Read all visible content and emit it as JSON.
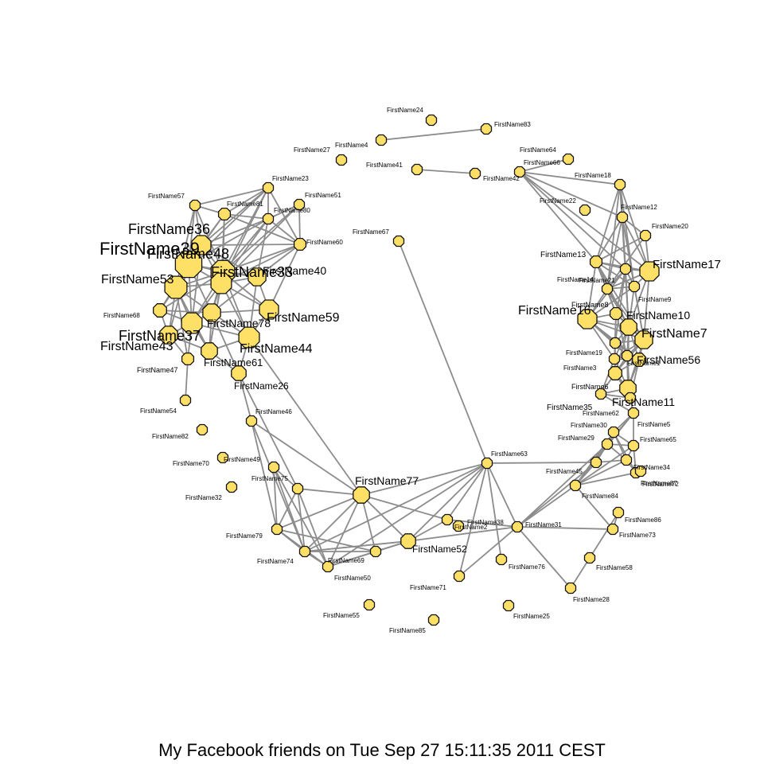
{
  "caption": "My Facebook friends on Tue Sep 27 15:11:35 2011 CEST",
  "colors": {
    "node_fill": "#ffe066",
    "node_stroke": "#111111",
    "edge": "#8c8c8c"
  },
  "nodes": [
    {
      "id": "FirstName24"
    },
    {
      "id": "FirstName83"
    },
    {
      "id": "FirstName27"
    },
    {
      "id": "FirstName4"
    },
    {
      "id": "FirstName41"
    },
    {
      "id": "FirstName42"
    },
    {
      "id": "FirstName64"
    },
    {
      "id": "FirstName66"
    },
    {
      "id": "FirstName23"
    },
    {
      "id": "FirstName57"
    },
    {
      "id": "FirstName81"
    },
    {
      "id": "FirstName51"
    },
    {
      "id": "FirstName80"
    },
    {
      "id": "FirstName60"
    },
    {
      "id": "FirstName67"
    },
    {
      "id": "FirstName36"
    },
    {
      "id": "FirstName39"
    },
    {
      "id": "FirstName48"
    },
    {
      "id": "FirstName33"
    },
    {
      "id": "FirstName40"
    },
    {
      "id": "FirstName53"
    },
    {
      "id": "FirstName68"
    },
    {
      "id": "FirstName78"
    },
    {
      "id": "FirstName59"
    },
    {
      "id": "FirstName37"
    },
    {
      "id": "FirstName43"
    },
    {
      "id": "FirstName44"
    },
    {
      "id": "FirstName47"
    },
    {
      "id": "FirstName61"
    },
    {
      "id": "FirstName26"
    },
    {
      "id": "FirstName54"
    },
    {
      "id": "FirstName46"
    },
    {
      "id": "FirstName82"
    },
    {
      "id": "FirstName70"
    },
    {
      "id": "FirstName49"
    },
    {
      "id": "FirstName75"
    },
    {
      "id": "FirstName32"
    },
    {
      "id": "FirstName77"
    },
    {
      "id": "FirstName63"
    },
    {
      "id": "FirstName79"
    },
    {
      "id": "FirstName74"
    },
    {
      "id": "FirstName69"
    },
    {
      "id": "FirstName50"
    },
    {
      "id": "FirstName52"
    },
    {
      "id": "FirstName38"
    },
    {
      "id": "FirstName2"
    },
    {
      "id": "FirstName31"
    },
    {
      "id": "FirstName71"
    },
    {
      "id": "FirstName76"
    },
    {
      "id": "FirstName55"
    },
    {
      "id": "FirstName85"
    },
    {
      "id": "FirstName25"
    },
    {
      "id": "FirstName28"
    },
    {
      "id": "FirstName58"
    },
    {
      "id": "FirstName73"
    },
    {
      "id": "FirstName86"
    },
    {
      "id": "FirstName18"
    },
    {
      "id": "FirstName22"
    },
    {
      "id": "FirstName12"
    },
    {
      "id": "FirstName20"
    },
    {
      "id": "FirstName13"
    },
    {
      "id": "FirstName17"
    },
    {
      "id": "FirstName14"
    },
    {
      "id": "FirstName21"
    },
    {
      "id": "FirstName9"
    },
    {
      "id": "FirstName8"
    },
    {
      "id": "FirstName16"
    },
    {
      "id": "FirstName10"
    },
    {
      "id": "FirstName7"
    },
    {
      "id": "FirstName19"
    },
    {
      "id": "FirstName3"
    },
    {
      "id": "FirstName1"
    },
    {
      "id": "FirstName56"
    },
    {
      "id": "FirstName6"
    },
    {
      "id": "FirstName11"
    },
    {
      "id": "FirstName35"
    },
    {
      "id": "FirstName62"
    },
    {
      "id": "FirstName30"
    },
    {
      "id": "FirstName5"
    },
    {
      "id": "FirstName29"
    },
    {
      "id": "FirstName65"
    },
    {
      "id": "FirstName34"
    },
    {
      "id": "FirstName45"
    },
    {
      "id": "FirstName72"
    },
    {
      "id": "FirstName87"
    },
    {
      "id": "FirstName84"
    }
  ],
  "edges": [
    [
      "FirstName4",
      "FirstName83"
    ],
    [
      "FirstName41",
      "FirstName42"
    ],
    [
      "FirstName64",
      "FirstName66"
    ],
    [
      "FirstName57",
      "FirstName36"
    ],
    [
      "FirstName57",
      "FirstName39"
    ],
    [
      "FirstName57",
      "FirstName81"
    ],
    [
      "FirstName57",
      "FirstName48"
    ],
    [
      "FirstName57",
      "FirstName53"
    ],
    [
      "FirstName57",
      "FirstName23"
    ],
    [
      "FirstName81",
      "FirstName23"
    ],
    [
      "FirstName81",
      "FirstName36"
    ],
    [
      "FirstName81",
      "FirstName48"
    ],
    [
      "FirstName81",
      "FirstName80"
    ],
    [
      "FirstName81",
      "FirstName33"
    ],
    [
      "FirstName81",
      "FirstName60"
    ],
    [
      "FirstName81",
      "FirstName39"
    ],
    [
      "FirstName23",
      "FirstName36"
    ],
    [
      "FirstName23",
      "FirstName80"
    ],
    [
      "FirstName23",
      "FirstName48"
    ],
    [
      "FirstName23",
      "FirstName33"
    ],
    [
      "FirstName23",
      "FirstName60"
    ],
    [
      "FirstName23",
      "FirstName39"
    ],
    [
      "FirstName51",
      "FirstName80"
    ],
    [
      "FirstName51",
      "FirstName60"
    ],
    [
      "FirstName51",
      "FirstName33"
    ],
    [
      "FirstName51",
      "FirstName48"
    ],
    [
      "FirstName80",
      "FirstName36"
    ],
    [
      "FirstName80",
      "FirstName48"
    ],
    [
      "FirstName80",
      "FirstName33"
    ],
    [
      "FirstName80",
      "FirstName40"
    ],
    [
      "FirstName80",
      "FirstName60"
    ],
    [
      "FirstName80",
      "FirstName39"
    ],
    [
      "FirstName60",
      "FirstName48"
    ],
    [
      "FirstName60",
      "FirstName33"
    ],
    [
      "FirstName60",
      "FirstName40"
    ],
    [
      "FirstName60",
      "FirstName36"
    ],
    [
      "FirstName60",
      "FirstName59"
    ],
    [
      "FirstName36",
      "FirstName39"
    ],
    [
      "FirstName36",
      "FirstName48"
    ],
    [
      "FirstName36",
      "FirstName53"
    ],
    [
      "FirstName36",
      "FirstName33"
    ],
    [
      "FirstName36",
      "FirstName68"
    ],
    [
      "FirstName36",
      "FirstName37"
    ],
    [
      "FirstName36",
      "FirstName40"
    ],
    [
      "FirstName39",
      "FirstName48"
    ],
    [
      "FirstName39",
      "FirstName53"
    ],
    [
      "FirstName39",
      "FirstName33"
    ],
    [
      "FirstName39",
      "FirstName68"
    ],
    [
      "FirstName39",
      "FirstName37"
    ],
    [
      "FirstName39",
      "FirstName43"
    ],
    [
      "FirstName39",
      "FirstName78"
    ],
    [
      "FirstName39",
      "FirstName40"
    ],
    [
      "FirstName48",
      "FirstName53"
    ],
    [
      "FirstName48",
      "FirstName33"
    ],
    [
      "FirstName48",
      "FirstName40"
    ],
    [
      "FirstName48",
      "FirstName59"
    ],
    [
      "FirstName48",
      "FirstName78"
    ],
    [
      "FirstName48",
      "FirstName37"
    ],
    [
      "FirstName48",
      "FirstName44"
    ],
    [
      "FirstName48",
      "FirstName61"
    ],
    [
      "FirstName48",
      "FirstName68"
    ],
    [
      "FirstName33",
      "FirstName40"
    ],
    [
      "FirstName33",
      "FirstName59"
    ],
    [
      "FirstName33",
      "FirstName78"
    ],
    [
      "FirstName33",
      "FirstName44"
    ],
    [
      "FirstName33",
      "FirstName53"
    ],
    [
      "FirstName33",
      "FirstName37"
    ],
    [
      "FirstName33",
      "FirstName61"
    ],
    [
      "FirstName40",
      "FirstName59"
    ],
    [
      "FirstName40",
      "FirstName44"
    ],
    [
      "FirstName40",
      "FirstName78"
    ],
    [
      "FirstName53",
      "FirstName68"
    ],
    [
      "FirstName53",
      "FirstName37"
    ],
    [
      "FirstName53",
      "FirstName43"
    ],
    [
      "FirstName53",
      "FirstName78"
    ],
    [
      "FirstName53",
      "FirstName61"
    ],
    [
      "FirstName53",
      "FirstName47"
    ],
    [
      "FirstName68",
      "FirstName37"
    ],
    [
      "FirstName68",
      "FirstName43"
    ],
    [
      "FirstName68",
      "FirstName78"
    ],
    [
      "FirstName78",
      "FirstName37"
    ],
    [
      "FirstName78",
      "FirstName43"
    ],
    [
      "FirstName78",
      "FirstName44"
    ],
    [
      "FirstName78",
      "FirstName61"
    ],
    [
      "FirstName78",
      "FirstName59"
    ],
    [
      "FirstName78",
      "FirstName26"
    ],
    [
      "FirstName37",
      "FirstName43"
    ],
    [
      "FirstName37",
      "FirstName47"
    ],
    [
      "FirstName37",
      "FirstName61"
    ],
    [
      "FirstName37",
      "FirstName44"
    ],
    [
      "FirstName43",
      "FirstName47"
    ],
    [
      "FirstName43",
      "FirstName61"
    ],
    [
      "FirstName47",
      "FirstName54"
    ],
    [
      "FirstName59",
      "FirstName44"
    ],
    [
      "FirstName44",
      "FirstName61"
    ],
    [
      "FirstName44",
      "FirstName26"
    ],
    [
      "FirstName61",
      "FirstName26"
    ],
    [
      "FirstName44",
      "FirstName77"
    ],
    [
      "FirstName67",
      "FirstName63"
    ],
    [
      "FirstName26",
      "FirstName46"
    ],
    [
      "FirstName26",
      "FirstName75"
    ],
    [
      "FirstName46",
      "FirstName79"
    ],
    [
      "FirstName46",
      "FirstName74"
    ],
    [
      "FirstName46",
      "FirstName77"
    ],
    [
      "FirstName75",
      "FirstName79"
    ],
    [
      "FirstName75",
      "FirstName74"
    ],
    [
      "FirstName75",
      "FirstName50"
    ],
    [
      "FirstName75",
      "FirstName77"
    ],
    [
      "FirstName49",
      "FirstName75"
    ],
    [
      "FirstName49",
      "FirstName79"
    ],
    [
      "FirstName49",
      "FirstName74"
    ],
    [
      "FirstName49",
      "FirstName50"
    ],
    [
      "FirstName77",
      "FirstName79"
    ],
    [
      "FirstName77",
      "FirstName74"
    ],
    [
      "FirstName77",
      "FirstName50"
    ],
    [
      "FirstName77",
      "FirstName69"
    ],
    [
      "FirstName77",
      "FirstName52"
    ],
    [
      "FirstName77",
      "FirstName38"
    ],
    [
      "FirstName77",
      "FirstName63"
    ],
    [
      "FirstName79",
      "FirstName74"
    ],
    [
      "FirstName79",
      "FirstName50"
    ],
    [
      "FirstName79",
      "FirstName69"
    ],
    [
      "FirstName74",
      "FirstName50"
    ],
    [
      "FirstName74",
      "FirstName69"
    ],
    [
      "FirstName74",
      "FirstName52"
    ],
    [
      "FirstName50",
      "FirstName69"
    ],
    [
      "FirstName50",
      "FirstName52"
    ],
    [
      "FirstName69",
      "FirstName52"
    ],
    [
      "FirstName52",
      "FirstName38"
    ],
    [
      "FirstName52",
      "FirstName63"
    ],
    [
      "FirstName52",
      "FirstName31"
    ],
    [
      "FirstName52",
      "FirstName74"
    ],
    [
      "FirstName52",
      "FirstName50"
    ],
    [
      "FirstName63",
      "FirstName38"
    ],
    [
      "FirstName63",
      "FirstName71"
    ],
    [
      "FirstName63",
      "FirstName76"
    ],
    [
      "FirstName63",
      "FirstName31"
    ],
    [
      "FirstName63",
      "FirstName45"
    ],
    [
      "FirstName63",
      "FirstName74"
    ],
    [
      "FirstName63",
      "FirstName50"
    ],
    [
      "FirstName38",
      "FirstName31"
    ],
    [
      "FirstName31",
      "FirstName71"
    ],
    [
      "FirstName31",
      "FirstName28"
    ],
    [
      "FirstName31",
      "FirstName45"
    ],
    [
      "FirstName31",
      "FirstName84"
    ],
    [
      "FirstName31",
      "FirstName73"
    ],
    [
      "FirstName31",
      "FirstName29"
    ],
    [
      "FirstName28",
      "FirstName86"
    ],
    [
      "FirstName45",
      "FirstName84"
    ],
    [
      "FirstName84",
      "FirstName29"
    ],
    [
      "FirstName84",
      "FirstName30"
    ],
    [
      "FirstName84",
      "FirstName34"
    ],
    [
      "FirstName84",
      "FirstName65"
    ],
    [
      "FirstName84",
      "FirstName5"
    ],
    [
      "FirstName84",
      "FirstName72"
    ],
    [
      "FirstName29",
      "FirstName30"
    ],
    [
      "FirstName29",
      "FirstName65"
    ],
    [
      "FirstName29",
      "FirstName34"
    ],
    [
      "FirstName29",
      "FirstName45"
    ],
    [
      "FirstName29",
      "FirstName5"
    ],
    [
      "FirstName30",
      "FirstName65"
    ],
    [
      "FirstName30",
      "FirstName34"
    ],
    [
      "FirstName30",
      "FirstName5"
    ],
    [
      "FirstName30",
      "FirstName72"
    ],
    [
      "FirstName65",
      "FirstName34"
    ],
    [
      "FirstName65",
      "FirstName72"
    ],
    [
      "FirstName65",
      "FirstName5"
    ],
    [
      "FirstName34",
      "FirstName72"
    ],
    [
      "FirstName34",
      "FirstName45"
    ],
    [
      "FirstName73",
      "FirstName86"
    ],
    [
      "FirstName73",
      "FirstName84"
    ],
    [
      "FirstName5",
      "FirstName11"
    ],
    [
      "FirstName5",
      "FirstName35"
    ],
    [
      "FirstName5",
      "FirstName62"
    ],
    [
      "FirstName66",
      "FirstName18"
    ],
    [
      "FirstName66",
      "FirstName13"
    ],
    [
      "FirstName66",
      "FirstName12"
    ],
    [
      "FirstName66",
      "FirstName17"
    ],
    [
      "FirstName66",
      "FirstName14"
    ],
    [
      "FirstName18",
      "FirstName12"
    ],
    [
      "FirstName18",
      "FirstName13"
    ],
    [
      "FirstName18",
      "FirstName17"
    ],
    [
      "FirstName18",
      "FirstName21"
    ],
    [
      "FirstName18",
      "FirstName9"
    ],
    [
      "FirstName18",
      "FirstName14"
    ],
    [
      "FirstName18",
      "FirstName10"
    ],
    [
      "FirstName12",
      "FirstName20"
    ],
    [
      "FirstName12",
      "FirstName13"
    ],
    [
      "FirstName12",
      "FirstName17"
    ],
    [
      "FirstName12",
      "FirstName21"
    ],
    [
      "FirstName12",
      "FirstName9"
    ],
    [
      "FirstName12",
      "FirstName14"
    ],
    [
      "FirstName12",
      "FirstName10"
    ],
    [
      "FirstName12",
      "FirstName7"
    ],
    [
      "FirstName20",
      "FirstName17"
    ],
    [
      "FirstName20",
      "FirstName13"
    ],
    [
      "FirstName20",
      "FirstName21"
    ],
    [
      "FirstName13",
      "FirstName17"
    ],
    [
      "FirstName13",
      "FirstName14"
    ],
    [
      "FirstName13",
      "FirstName21"
    ],
    [
      "FirstName13",
      "FirstName8"
    ],
    [
      "FirstName13",
      "FirstName16"
    ],
    [
      "FirstName13",
      "FirstName10"
    ],
    [
      "FirstName13",
      "FirstName7"
    ],
    [
      "FirstName13",
      "FirstName9"
    ],
    [
      "FirstName17",
      "FirstName21"
    ],
    [
      "FirstName17",
      "FirstName9"
    ],
    [
      "FirstName17",
      "FirstName10"
    ],
    [
      "FirstName17",
      "FirstName7"
    ],
    [
      "FirstName17",
      "FirstName14"
    ],
    [
      "FirstName14",
      "FirstName21"
    ],
    [
      "FirstName14",
      "FirstName8"
    ],
    [
      "FirstName14",
      "FirstName16"
    ],
    [
      "FirstName14",
      "FirstName10"
    ],
    [
      "FirstName14",
      "FirstName9"
    ],
    [
      "FirstName14",
      "FirstName19"
    ],
    [
      "FirstName21",
      "FirstName9"
    ],
    [
      "FirstName21",
      "FirstName8"
    ],
    [
      "FirstName21",
      "FirstName10"
    ],
    [
      "FirstName21",
      "FirstName7"
    ],
    [
      "FirstName21",
      "FirstName16"
    ],
    [
      "FirstName9",
      "FirstName10"
    ],
    [
      "FirstName9",
      "FirstName7"
    ],
    [
      "FirstName9",
      "FirstName16"
    ],
    [
      "FirstName8",
      "FirstName16"
    ],
    [
      "FirstName8",
      "FirstName10"
    ],
    [
      "FirstName8",
      "FirstName7"
    ],
    [
      "FirstName8",
      "FirstName19"
    ],
    [
      "FirstName8",
      "FirstName3"
    ],
    [
      "FirstName8",
      "FirstName1"
    ],
    [
      "FirstName16",
      "FirstName10"
    ],
    [
      "FirstName16",
      "FirstName7"
    ],
    [
      "FirstName16",
      "FirstName19"
    ],
    [
      "FirstName16",
      "FirstName3"
    ],
    [
      "FirstName16",
      "FirstName1"
    ],
    [
      "FirstName16",
      "FirstName56"
    ],
    [
      "FirstName10",
      "FirstName7"
    ],
    [
      "FirstName10",
      "FirstName19"
    ],
    [
      "FirstName10",
      "FirstName3"
    ],
    [
      "FirstName10",
      "FirstName1"
    ],
    [
      "FirstName10",
      "FirstName56"
    ],
    [
      "FirstName10",
      "FirstName6"
    ],
    [
      "FirstName10",
      "FirstName11"
    ],
    [
      "FirstName7",
      "FirstName19"
    ],
    [
      "FirstName7",
      "FirstName3"
    ],
    [
      "FirstName7",
      "FirstName1"
    ],
    [
      "FirstName7",
      "FirstName56"
    ],
    [
      "FirstName7",
      "FirstName6"
    ],
    [
      "FirstName7",
      "FirstName11"
    ],
    [
      "FirstName19",
      "FirstName3"
    ],
    [
      "FirstName19",
      "FirstName1"
    ],
    [
      "FirstName19",
      "FirstName56"
    ],
    [
      "FirstName19",
      "FirstName6"
    ],
    [
      "FirstName3",
      "FirstName1"
    ],
    [
      "FirstName3",
      "FirstName56"
    ],
    [
      "FirstName3",
      "FirstName6"
    ],
    [
      "FirstName3",
      "FirstName11"
    ],
    [
      "FirstName3",
      "FirstName35"
    ],
    [
      "FirstName1",
      "FirstName56"
    ],
    [
      "FirstName1",
      "FirstName6"
    ],
    [
      "FirstName1",
      "FirstName11"
    ],
    [
      "FirstName1",
      "FirstName62"
    ],
    [
      "FirstName56",
      "FirstName6"
    ],
    [
      "FirstName56",
      "FirstName11"
    ],
    [
      "FirstName56",
      "FirstName62"
    ],
    [
      "FirstName6",
      "FirstName11"
    ],
    [
      "FirstName6",
      "FirstName35"
    ],
    [
      "FirstName6",
      "FirstName62"
    ],
    [
      "FirstName11",
      "FirstName35"
    ],
    [
      "FirstName11",
      "FirstName62"
    ],
    [
      "FirstName35",
      "FirstName62"
    ]
  ]
}
